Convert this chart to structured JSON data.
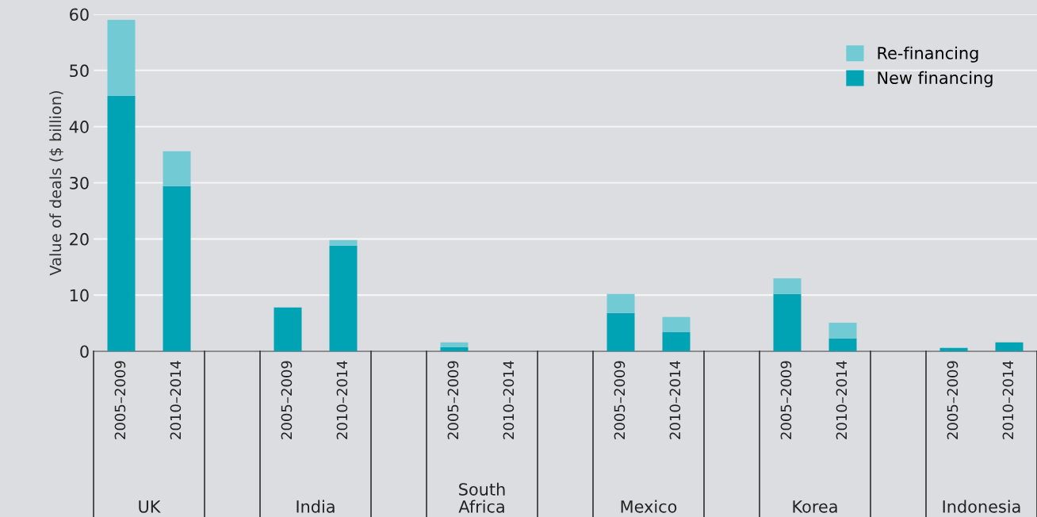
{
  "chart_data": {
    "type": "bar",
    "stacked": true,
    "ylabel": "Value of deals ($ billion)",
    "categories": [
      "2005–2009",
      "2010–2014",
      "2005–2009",
      "2010–2014",
      "2005–2009",
      "2010–2014",
      "2005–2009",
      "2010–2014",
      "2005–2009",
      "2010–2014",
      "2005–2009",
      "2010–2014"
    ],
    "series": [
      {
        "name": "New financing",
        "color": "#00a3b4",
        "values": [
          45.5,
          29.4,
          7.8,
          18.8,
          0.7,
          0,
          6.8,
          3.4,
          10.2,
          2.3,
          0.6,
          1.6
        ]
      },
      {
        "name": "Re-financing",
        "color": "#72cad5",
        "values": [
          13.5,
          6.2,
          0,
          1.0,
          0.9,
          0,
          3.4,
          2.7,
          2.8,
          2.8,
          0,
          0
        ]
      }
    ],
    "annotations": [
      "UK",
      "India",
      "South\nAfrica",
      "Mexico",
      "Korea",
      "Indonesia"
    ],
    "ylim": [
      0,
      60
    ],
    "yticks": [
      0,
      10,
      20,
      30,
      40,
      50,
      60
    ],
    "grid": "y",
    "legend": "top right"
  }
}
